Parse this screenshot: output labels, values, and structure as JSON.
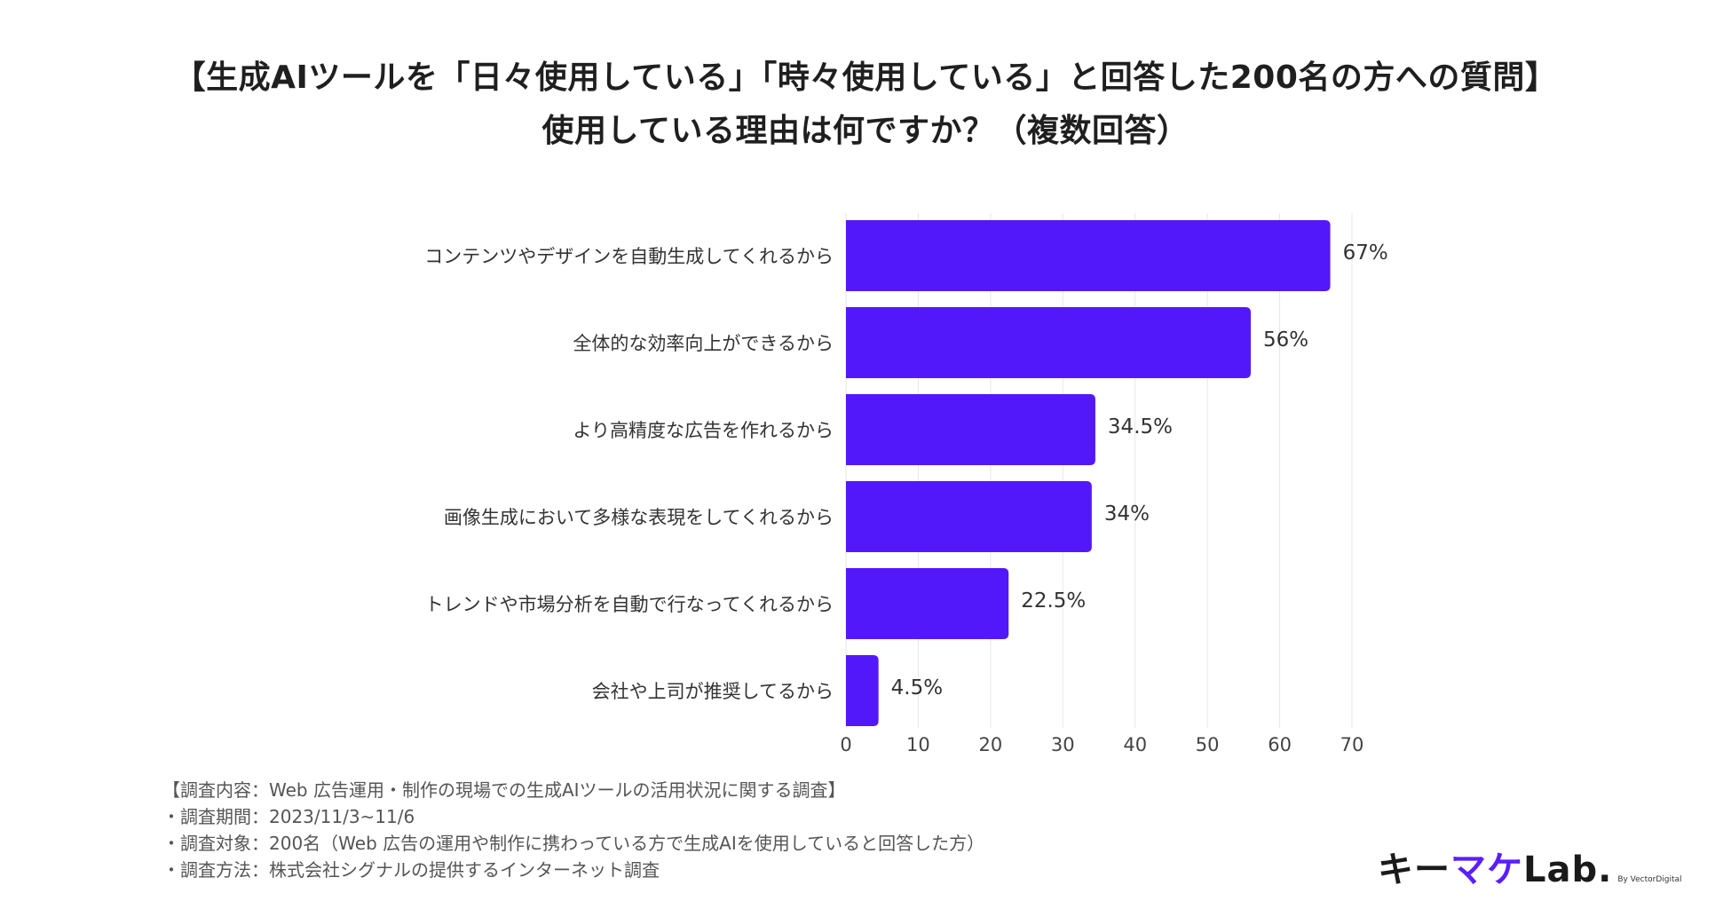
{
  "title": {
    "line1": "【生成AIツールを「日々使用している」「時々使用している」と回答した200名の方への質問】",
    "line2": "使用している理由は何ですか？（複数回答）"
  },
  "chart_data": {
    "type": "bar",
    "orientation": "horizontal",
    "categories": [
      "コンテンツやデザインを自動生成してくれるから",
      "全体的な効率向上ができるから",
      "より高精度な広告を作れるから",
      "画像生成において多様な表現をしてくれるから",
      "トレンドや市場分析を自動で行なってくれるから",
      "会社や上司が推奨してるから"
    ],
    "values": [
      67,
      56,
      34.5,
      34,
      22.5,
      4.5
    ],
    "data_labels": [
      "67%",
      "56%",
      "34.5%",
      "34%",
      "22.5%",
      "4.5%"
    ],
    "xlim": [
      0,
      70
    ],
    "xticks": [
      "0",
      "10",
      "20",
      "30",
      "40",
      "50",
      "60",
      "70"
    ],
    "bar_color": "#5218fa",
    "grid": true
  },
  "notes": {
    "line1": "【調査内容：Web 広告運用・制作の現場での生成AIツールの活用状況に関する調査】",
    "line2": "・調査期間：2023/11/3~11/6",
    "line3": "・調査対象：200名（Web 広告の運用や制作に携わっている方で生成AIを使用していると回答した方）",
    "line4": "・調査方法：株式会社シグナルの提供するインターネット調査"
  },
  "logo": {
    "part1": "キー",
    "part2": "マケ",
    "part3": "Lab.",
    "byline": "By VectorDigital",
    "accent_color": "#5a1eff"
  }
}
